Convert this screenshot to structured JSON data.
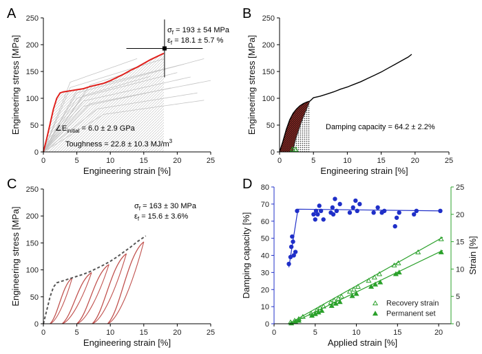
{
  "chart_data": [
    {
      "type": "line",
      "panel_label": "A",
      "xlabel": "Engineering strain [%]",
      "ylabel": "Engineering stress [MPa]",
      "xlim": [
        0,
        25
      ],
      "ylim": [
        0,
        250
      ],
      "xticks": [
        0,
        5,
        10,
        15,
        20,
        25
      ],
      "yticks": [
        0,
        50,
        100,
        150,
        200,
        250
      ],
      "series": [
        {
          "role": "representative curve",
          "color": "#e0201c",
          "x": [
            0,
            0.5,
            1,
            1.5,
            2,
            2.5,
            3,
            4,
            5,
            6,
            7,
            8,
            9,
            10,
            11,
            12,
            13,
            14,
            15,
            16,
            17,
            18
          ],
          "y": [
            0,
            25,
            52,
            80,
            100,
            110,
            112,
            114,
            116,
            118,
            122,
            125,
            128,
            133,
            139,
            145,
            152,
            158,
            165,
            172,
            178,
            184
          ]
        }
      ],
      "background_curves_color": "#c4c4c4",
      "error_point": {
        "x": 18.1,
        "y": 193,
        "x_err": 5.7,
        "y_err": 54
      },
      "annotations": {
        "sigma_prefix": "σ",
        "sigma_sub": "f",
        "sigma_value": " = 193 ± 54 MPa",
        "eps_prefix": "ε",
        "eps_sub": "f",
        "eps_value": " = 18.1 ± 5.7 %",
        "modulus_prefix": "∠E",
        "modulus_sub": "initial",
        "modulus_value": " = 6.0 ± 2.9 GPa",
        "toughness_main": "Toughness = 22.8 ± 10.3 MJ/m",
        "toughness_sup": "3"
      }
    },
    {
      "type": "line",
      "panel_label": "B",
      "xlabel": "Engineering strain [%]",
      "ylabel": "Engineering stress [MPa]",
      "xlim": [
        0,
        25
      ],
      "ylim": [
        0,
        250
      ],
      "xticks": [
        0,
        5,
        10,
        15,
        20,
        25
      ],
      "yticks": [
        0,
        50,
        100,
        150,
        200,
        250
      ],
      "series": [
        {
          "role": "load to failure",
          "color": "#000000",
          "x": [
            0,
            0.5,
            1,
            1.5,
            2,
            2.5,
            3,
            3.5,
            4,
            4.5,
            5,
            6,
            7,
            8,
            9,
            10,
            11,
            12,
            13,
            14,
            15,
            16,
            17,
            18,
            19,
            19.5
          ],
          "y": [
            0,
            20,
            42,
            60,
            72,
            80,
            86,
            90,
            93,
            95,
            101,
            104,
            108,
            112,
            117,
            121,
            126,
            131,
            137,
            143,
            149,
            156,
            163,
            170,
            177,
            182
          ]
        },
        {
          "role": "unloading",
          "color": "#333333",
          "x": [
            4.5,
            4.3,
            4.0,
            3.6,
            3.2,
            2.8,
            2.4,
            2.1,
            1.9
          ],
          "y": [
            95,
            90,
            80,
            68,
            55,
            40,
            25,
            10,
            0
          ]
        }
      ],
      "markers": [
        1.9,
        2.4
      ],
      "marker_color": "#22a022",
      "annotation": "Damping capacity = 64.2  ± 2.2%"
    },
    {
      "type": "line",
      "panel_label": "C",
      "xlabel": "Engineering strain [%]",
      "ylabel": "Engineering stress [MPa]",
      "xlim": [
        0,
        25
      ],
      "ylim": [
        0,
        250
      ],
      "xticks": [
        0,
        5,
        10,
        15,
        20,
        25
      ],
      "yticks": [
        0,
        50,
        100,
        150,
        200,
        250
      ],
      "envelope": {
        "color": "#555555",
        "style": "dashed",
        "x": [
          0,
          0.5,
          1,
          1.5,
          2,
          3,
          4,
          5,
          6,
          7,
          8,
          9,
          10,
          11,
          12,
          13,
          14,
          15.3
        ],
        "y": [
          0,
          25,
          50,
          68,
          76,
          80,
          84,
          88,
          92,
          97,
          103,
          109,
          116,
          124,
          133,
          142,
          152,
          163
        ]
      },
      "cycles": [
        {
          "peak": [
            4.3,
            85
          ],
          "set": 1.0
        },
        {
          "peak": [
            7.2,
            95
          ],
          "set": 2.8
        },
        {
          "peak": [
            9.8,
            110
          ],
          "set": 5.0
        },
        {
          "peak": [
            12.4,
            130
          ],
          "set": 7.3
        },
        {
          "peak": [
            15.0,
            152
          ],
          "set": 9.6
        }
      ],
      "cycle_color": "#c0504d",
      "annotations": {
        "sigma_prefix": "σ",
        "sigma_sub": "f",
        "sigma_value": " = 163 ± 30 MPa",
        "eps_prefix": "ε",
        "eps_sub": "f",
        "eps_value": " = 15.6 ± 3.6%"
      }
    },
    {
      "type": "scatter",
      "panel_label": "D",
      "xlabel": "Applied strain [%]",
      "ylabel": "Damping capacity [%]",
      "y2label": "Strain [%]",
      "xlim": [
        0,
        21.5
      ],
      "ylim": [
        0,
        80
      ],
      "y2lim": [
        0,
        25
      ],
      "xticks": [
        0,
        5,
        10,
        15,
        20
      ],
      "yticks": [
        0,
        10,
        20,
        30,
        40,
        50,
        60,
        70,
        80
      ],
      "y2ticks": [
        0,
        5,
        10,
        15,
        20,
        25
      ],
      "left_axis_color": "#1f2fc8",
      "right_axis_color": "#2aa02a",
      "series": [
        {
          "name": "",
          "axis": "left",
          "marker": "circle",
          "color": "#1f2fc8",
          "x": [
            1.8,
            2.0,
            2.1,
            2.2,
            2.3,
            2.4,
            2.6,
            2.8,
            4.8,
            5.0,
            5.1,
            5.3,
            5.5,
            5.7,
            6.0,
            6.9,
            7.1,
            7.2,
            7.4,
            7.6,
            8.0,
            9.2,
            9.6,
            9.9,
            10.1,
            10.4,
            12.1,
            12.6,
            13.1,
            13.4,
            14.7,
            14.9,
            15.2,
            17.0,
            17.3,
            20.2
          ],
          "y": [
            35,
            39,
            45,
            51,
            48,
            40,
            42,
            66,
            64,
            61,
            66,
            64,
            69,
            66,
            61,
            65,
            68,
            64,
            73,
            66,
            70,
            65,
            68,
            72,
            66,
            70,
            65,
            68,
            65,
            66,
            57,
            62,
            65,
            64,
            66,
            66
          ]
        },
        {
          "name": "",
          "axis": "left",
          "role": "fit",
          "style": "line",
          "color": "#1f2fc8",
          "x": [
            1.8,
            2.9,
            20.4
          ],
          "y": [
            33,
            67,
            66
          ]
        },
        {
          "name": "Recovery strain",
          "axis": "right",
          "marker": "open-triangle",
          "color": "#2aa02a",
          "x": [
            2.0,
            2.5,
            3.0,
            3.5,
            4.5,
            5.2,
            5.6,
            6.0,
            6.9,
            7.3,
            7.8,
            8.2,
            9.2,
            9.7,
            10.2,
            11.5,
            12.2,
            12.8,
            14.6,
            15.1,
            17.5,
            20.3
          ],
          "y": [
            0.3,
            0.6,
            0.9,
            1.3,
            1.9,
            2.5,
            2.9,
            3.2,
            3.9,
            4.3,
            4.6,
            5.0,
            5.9,
            6.3,
            6.8,
            7.9,
            8.5,
            9.1,
            10.7,
            11.1,
            13.1,
            15.5
          ]
        },
        {
          "name": "Permanent set",
          "axis": "right",
          "marker": "filled-triangle",
          "color": "#2aa02a",
          "x": [
            2.1,
            2.6,
            3.0,
            4.6,
            5.0,
            5.4,
            5.8,
            7.0,
            7.5,
            8.0,
            9.5,
            10.0,
            11.8,
            12.3,
            12.9,
            14.8,
            15.2,
            20.3
          ],
          "y": [
            0.1,
            0.4,
            0.6,
            1.5,
            1.8,
            2.1,
            2.4,
            3.3,
            3.7,
            4.0,
            5.1,
            5.5,
            6.8,
            7.2,
            7.6,
            9.1,
            9.4,
            13.1
          ]
        },
        {
          "name": "",
          "axis": "right",
          "role": "fit",
          "style": "line",
          "color": "#2aa02a",
          "x": [
            1.8,
            20.5
          ],
          "y": [
            0,
            15.8
          ]
        },
        {
          "name": "",
          "axis": "right",
          "role": "fit",
          "style": "line",
          "color": "#2aa02a",
          "x": [
            2.0,
            20.5
          ],
          "y": [
            0,
            13.4
          ]
        }
      ],
      "legend_position": "bottom-right"
    }
  ]
}
